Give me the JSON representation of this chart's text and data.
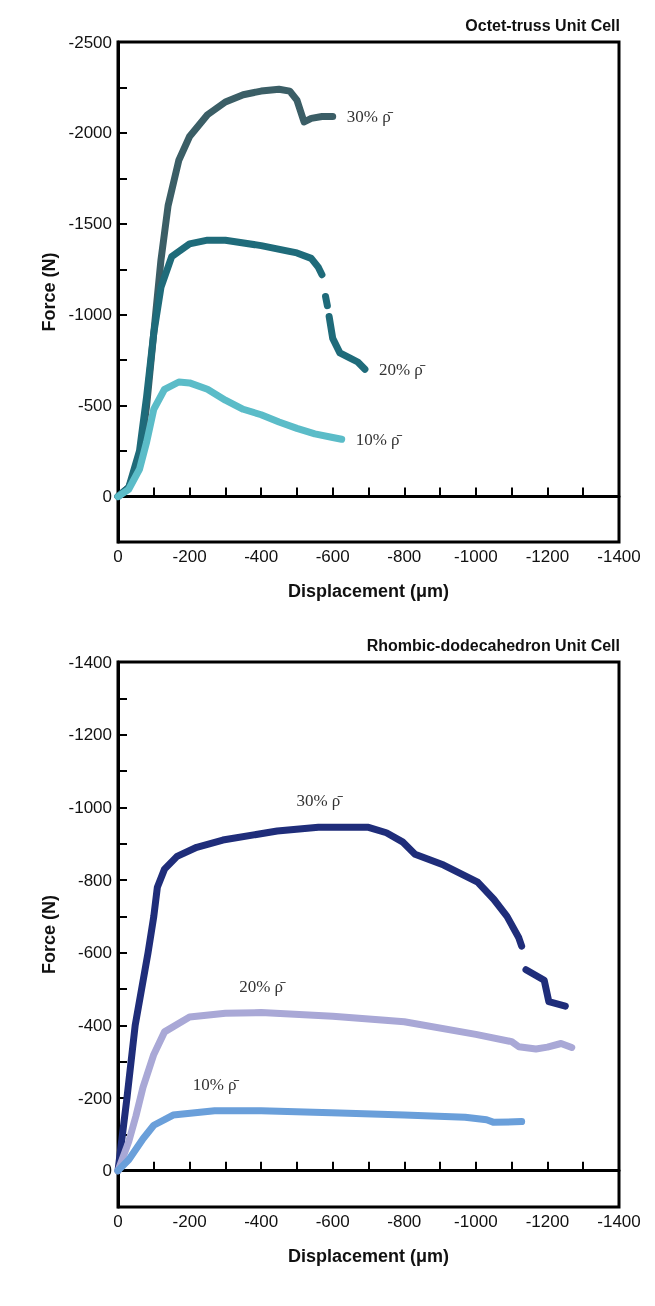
{
  "chart_data": [
    {
      "type": "line",
      "title": "Octet-truss Unit Cell",
      "xlabel": "Displacement (μm)",
      "ylabel": "Force (N)",
      "xlim": [
        0,
        -1400
      ],
      "ylim": [
        250,
        -2500
      ],
      "xticks": [
        0,
        {
          "value": -100,
          "label": null
        },
        -200,
        {
          "value": -300,
          "label": null
        },
        -400,
        {
          "value": -500,
          "label": null
        },
        -600,
        {
          "value": -700,
          "label": null
        },
        -800,
        {
          "value": -900,
          "label": null
        },
        -1000,
        {
          "value": -1100,
          "label": null
        },
        -1200,
        {
          "value": -1300,
          "label": null
        },
        -1400
      ],
      "yticks": [
        0,
        {
          "value": -250,
          "label": null
        },
        -500,
        {
          "value": -750,
          "label": null
        },
        -1000,
        {
          "value": -1250,
          "label": null
        },
        -1500,
        {
          "value": -1750,
          "label": null
        },
        -2000,
        {
          "value": -2250,
          "label": null
        },
        -2500
      ],
      "series": [
        {
          "name": "30% ρ̄",
          "color": "#3b5e66",
          "x": [
            0,
            -30,
            -60,
            -80,
            -100,
            -120,
            -140,
            -170,
            -200,
            -250,
            -300,
            -350,
            -400,
            -450,
            -480,
            -500,
            -520,
            -540,
            -570,
            -600
          ],
          "values": [
            0,
            -50,
            -200,
            -500,
            -900,
            -1300,
            -1600,
            -1850,
            -1980,
            -2100,
            -2170,
            -2210,
            -2230,
            -2240,
            -2230,
            -2180,
            -2060,
            -2080,
            -2090,
            -2090
          ]
        },
        {
          "name": "20% ρ̄",
          "color": "#1f6b7a",
          "x": [
            0,
            -30,
            -60,
            -80,
            -100,
            -120,
            -150,
            -200,
            -250,
            -300,
            -400,
            -500,
            -540,
            -560,
            -570,
            -575,
            -580,
            -585,
            -587,
            -590,
            -600,
            -620,
            -650,
            -670,
            -690
          ],
          "values": [
            0,
            -50,
            -250,
            -550,
            -900,
            -1150,
            -1320,
            -1390,
            -1410,
            -1410,
            -1380,
            -1340,
            -1310,
            -1260,
            -1220,
            null,
            -1100,
            -1050,
            null,
            -990,
            -870,
            -790,
            -760,
            -740,
            -700
          ]
        },
        {
          "name": "10% ρ̄",
          "color": "#5bbcc8",
          "x": [
            0,
            -30,
            -60,
            -80,
            -100,
            -130,
            -170,
            -200,
            -250,
            -300,
            -350,
            -400,
            -450,
            -500,
            -550,
            -600,
            -625
          ],
          "values": [
            0,
            -40,
            -150,
            -300,
            -480,
            -590,
            -630,
            -625,
            -590,
            -530,
            -480,
            -450,
            -410,
            -375,
            -345,
            -325,
            -315
          ]
        }
      ]
    },
    {
      "type": "line",
      "title": "Rhombic-dodecahedron Unit Cell",
      "xlabel": "Displacement (μm)",
      "ylabel": "Force (N)",
      "xlim": [
        0,
        -1400
      ],
      "ylim": [
        100,
        -1400
      ],
      "xticks": [
        0,
        {
          "value": -100,
          "label": null
        },
        -200,
        {
          "value": -300,
          "label": null
        },
        -400,
        {
          "value": -500,
          "label": null
        },
        -600,
        {
          "value": -700,
          "label": null
        },
        -800,
        {
          "value": -900,
          "label": null
        },
        -1000,
        {
          "value": -1100,
          "label": null
        },
        -1200,
        {
          "value": -1300,
          "label": null
        },
        -1400
      ],
      "yticks": [
        0,
        {
          "value": -100,
          "label": null
        },
        -200,
        {
          "value": -300,
          "label": null
        },
        -400,
        {
          "value": -500,
          "label": null
        },
        -600,
        {
          "value": -700,
          "label": null
        },
        -800,
        {
          "value": -900,
          "label": null
        },
        -1000,
        {
          "value": -1100,
          "label": null
        },
        -1200,
        {
          "value": -1300,
          "label": null
        },
        -1400
      ],
      "series": [
        {
          "name": "30% ρ̄",
          "color": "#1f2d7a",
          "x": [
            0,
            -25,
            -48,
            -84,
            -100,
            -110,
            -130,
            -165,
            -220,
            -293,
            -445,
            -560,
            -700,
            -750,
            -795,
            -830,
            -910,
            -1005,
            -1050,
            -1087,
            -1120,
            -1128,
            -1135,
            -1140,
            -1191,
            -1204,
            -1250
          ],
          "values": [
            0,
            -200,
            -400,
            -600,
            -700,
            -780,
            -830,
            -865,
            -890,
            -910,
            -935,
            -945,
            -945,
            -930,
            -905,
            -871,
            -841,
            -794,
            -747,
            -700,
            -641,
            -618,
            null,
            -553,
            -524,
            -465,
            -453
          ]
        },
        {
          "name": "20% ρ̄",
          "color": "#a9a8d6",
          "x": [
            0,
            -30,
            -50,
            -70,
            -100,
            -130,
            -200,
            -300,
            -400,
            -600,
            -800,
            -1000,
            -1100,
            -1120,
            -1168,
            -1200,
            -1238,
            -1268
          ],
          "values": [
            0,
            -80,
            -150,
            -230,
            -320,
            -382,
            -423,
            -433,
            -435,
            -425,
            -410,
            -375,
            -355,
            -341,
            -335,
            -340,
            -350,
            -339
          ]
        },
        {
          "name": "10% ρ̄",
          "color": "#6a9fda",
          "x": [
            0,
            -30,
            -70,
            -100,
            -154,
            -270,
            -400,
            -620,
            -800,
            -970,
            -1030,
            -1050,
            -1128
          ],
          "values": [
            0,
            -30,
            -88,
            -125,
            -153,
            -165,
            -165,
            -159,
            -153,
            -147,
            -140,
            -133,
            -135
          ]
        }
      ]
    }
  ]
}
